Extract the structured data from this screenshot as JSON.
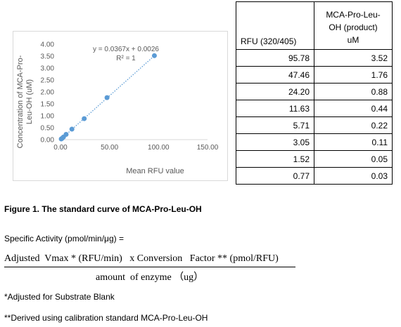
{
  "chart_data": {
    "type": "scatter",
    "xlabel": "Mean RFU value",
    "ylabel": "Concentration of MCA-Pro-Leu-OH (uM)",
    "ylabel_lines": [
      "Concentration of MCA-Pro-",
      "Leu-OH (uM)"
    ],
    "x_ticks": [
      "0.00",
      "50.00",
      "100.00",
      "150.00"
    ],
    "y_ticks": [
      "0.00",
      "0.50",
      "1.00",
      "1.50",
      "2.00",
      "2.50",
      "3.00",
      "3.50",
      "4.00"
    ],
    "xlim": [
      0,
      150
    ],
    "ylim": [
      0,
      4
    ],
    "grid": false,
    "trendline": {
      "type": "linear",
      "style": "dotted",
      "equation": "y = 0.0367x + 0.0026",
      "r_squared": "R² = 1",
      "slope": 0.0367,
      "intercept": 0.0026
    },
    "points": [
      {
        "x": 95.78,
        "y": 3.52
      },
      {
        "x": 47.46,
        "y": 1.76
      },
      {
        "x": 24.2,
        "y": 0.88
      },
      {
        "x": 11.63,
        "y": 0.44
      },
      {
        "x": 5.71,
        "y": 0.22
      },
      {
        "x": 3.05,
        "y": 0.11
      },
      {
        "x": 1.52,
        "y": 0.05
      },
      {
        "x": 0.77,
        "y": 0.03
      }
    ],
    "colors": {
      "marker": "#5b9bd5",
      "trendline": "#5b9bd5",
      "axis": "#d9d9d9",
      "text": "#595959"
    }
  },
  "table": {
    "headers": {
      "rfu": "RFU (320/405)",
      "product_lines": [
        "MCA-Pro-Leu-",
        "OH (product)",
        "uM"
      ]
    },
    "rows": [
      [
        "95.78",
        "3.52"
      ],
      [
        "47.46",
        "1.76"
      ],
      [
        "24.20",
        "0.88"
      ],
      [
        "11.63",
        "0.44"
      ],
      [
        "5.71",
        "0.22"
      ],
      [
        "3.05",
        "0.11"
      ],
      [
        "1.52",
        "0.05"
      ],
      [
        "0.77",
        "0.03"
      ]
    ]
  },
  "text": {
    "figure_caption": "Figure 1. The standard curve of MCA-Pro-Leu-OH",
    "specific_activity_label": "Specific Activity (pmol/min/μg) =",
    "formula_numerator": "Adjusted  Vmax * (RFU/min)   x Conversion   Factor ** (pmol/RFU)",
    "formula_denominator": "amount  of enzyme （ug）",
    "note_1": "*Adjusted for Substrate Blank",
    "note_2": "**Derived using calibration standard MCA-Pro-Leu-OH"
  }
}
